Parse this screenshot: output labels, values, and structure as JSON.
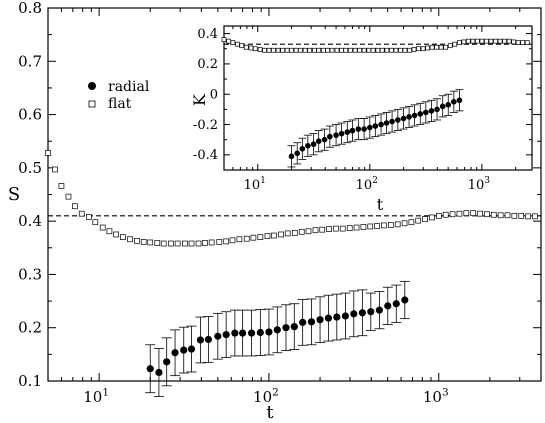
{
  "chart_data": [
    {
      "type": "scatter",
      "title": "",
      "xlabel": "t",
      "ylabel": "S",
      "xscale": "log",
      "xlim": [
        5,
        4000
      ],
      "ylim": [
        0.1,
        0.8
      ],
      "xticks": [
        {
          "v": 10,
          "e": "1"
        },
        {
          "v": 100,
          "e": "2"
        },
        {
          "v": 1000,
          "e": "3"
        }
      ],
      "xtick_base": "10",
      "yticks": [
        "0.1",
        "0.2",
        "0.3",
        "0.4",
        "0.5",
        "0.6",
        "0.7",
        "0.8"
      ],
      "ytick_values": [
        0.1,
        0.2,
        0.3,
        0.4,
        0.5,
        0.6,
        0.7,
        0.8
      ],
      "grid": false,
      "legend_position": "left, upper-middle",
      "reference_line": {
        "y": 0.41,
        "style": "dashed"
      },
      "series": [
        {
          "name": "radial",
          "marker": "filled-circle",
          "x": [
            20,
            22.5,
            25,
            28,
            31.5,
            35,
            39.5,
            44,
            50,
            56,
            63,
            70,
            79,
            89,
            100,
            112,
            126,
            141,
            158,
            178,
            200,
            224,
            251,
            282,
            316,
            355,
            398,
            447,
            501,
            562,
            631
          ],
          "y": [
            0.123,
            0.116,
            0.136,
            0.153,
            0.158,
            0.16,
            0.177,
            0.178,
            0.184,
            0.187,
            0.19,
            0.19,
            0.19,
            0.191,
            0.192,
            0.196,
            0.2,
            0.202,
            0.21,
            0.211,
            0.215,
            0.218,
            0.22,
            0.222,
            0.226,
            0.228,
            0.23,
            0.233,
            0.241,
            0.245,
            0.252
          ],
          "err": [
            0.045,
            0.045,
            0.045,
            0.043,
            0.043,
            0.043,
            0.043,
            0.043,
            0.043,
            0.043,
            0.043,
            0.043,
            0.043,
            0.043,
            0.043,
            0.043,
            0.043,
            0.043,
            0.043,
            0.043,
            0.043,
            0.043,
            0.043,
            0.043,
            0.043,
            0.043,
            0.035,
            0.035,
            0.035,
            0.035,
            0.035
          ]
        },
        {
          "name": "flat",
          "marker": "open-square",
          "x": [
            5.0,
            5.5,
            6.0,
            6.6,
            7.2,
            7.9,
            8.7,
            9.5,
            10.5,
            11.5,
            12.6,
            13.8,
            15.2,
            16.7,
            18.3,
            20,
            22,
            24,
            26.5,
            29,
            32,
            35,
            38.5,
            42,
            46,
            51,
            56,
            61,
            67,
            74,
            81,
            89,
            98,
            107,
            118,
            129,
            142,
            156,
            171,
            188,
            206,
            226,
            248,
            272,
            299,
            328,
            360,
            395,
            433,
            475,
            522,
            573,
            629,
            690,
            757,
            831,
            912,
            1001,
            1099,
            1206,
            1324,
            1453,
            1595,
            1750,
            1921,
            2108,
            2314,
            2540,
            2787,
            3059,
            3358,
            3685
          ],
          "y": [
            0.528,
            0.497,
            0.466,
            0.446,
            0.428,
            0.414,
            0.408,
            0.398,
            0.388,
            0.381,
            0.375,
            0.37,
            0.366,
            0.363,
            0.361,
            0.36,
            0.359,
            0.358,
            0.358,
            0.358,
            0.358,
            0.358,
            0.358,
            0.359,
            0.36,
            0.361,
            0.362,
            0.364,
            0.366,
            0.367,
            0.369,
            0.37,
            0.372,
            0.373,
            0.375,
            0.377,
            0.378,
            0.38,
            0.381,
            0.383,
            0.384,
            0.385,
            0.386,
            0.386,
            0.387,
            0.388,
            0.389,
            0.39,
            0.391,
            0.392,
            0.393,
            0.394,
            0.396,
            0.398,
            0.401,
            0.404,
            0.407,
            0.41,
            0.412,
            0.413,
            0.414,
            0.415,
            0.415,
            0.414,
            0.413,
            0.412,
            0.411,
            0.411,
            0.41,
            0.41,
            0.409,
            0.409
          ],
          "err": 0.004
        }
      ]
    },
    {
      "type": "scatter",
      "title": "",
      "xlabel": "t",
      "ylabel": "K",
      "xscale": "log",
      "xlim": [
        5,
        2800
      ],
      "ylim": [
        -0.5,
        0.45
      ],
      "xticks": [
        {
          "v": 10,
          "e": "1"
        },
        {
          "v": 100,
          "e": "2"
        },
        {
          "v": 1000,
          "e": "3"
        }
      ],
      "xtick_base": "10",
      "yticks": [
        "-0.4",
        "-0.2",
        "0",
        "0.2",
        "0.4"
      ],
      "ytick_values": [
        -0.4,
        -0.2,
        0,
        0.2,
        0.4
      ],
      "grid": false,
      "reference_line": {
        "y": 0.33,
        "style": "dashed"
      },
      "series": [
        {
          "name": "radial",
          "marker": "filled-circle",
          "x": [
            20,
            22.5,
            25,
            28,
            31.5,
            35,
            39.5,
            44,
            50,
            56,
            63,
            70,
            79,
            89,
            100,
            112,
            126,
            141,
            158,
            178,
            200,
            224,
            251,
            282,
            316,
            355,
            398,
            447,
            501,
            562,
            631
          ],
          "y": [
            -0.41,
            -0.39,
            -0.36,
            -0.34,
            -0.33,
            -0.31,
            -0.3,
            -0.28,
            -0.27,
            -0.26,
            -0.25,
            -0.24,
            -0.23,
            -0.23,
            -0.22,
            -0.21,
            -0.2,
            -0.19,
            -0.18,
            -0.17,
            -0.16,
            -0.15,
            -0.14,
            -0.13,
            -0.12,
            -0.11,
            -0.1,
            -0.08,
            -0.07,
            -0.05,
            -0.04
          ],
          "err": 0.07
        },
        {
          "name": "flat",
          "marker": "open-square",
          "x": [
            5.0,
            5.5,
            6.0,
            6.6,
            7.2,
            7.9,
            8.7,
            9.5,
            10.5,
            11.5,
            12.6,
            13.8,
            15.2,
            16.7,
            18.3,
            20,
            22,
            24,
            26.5,
            29,
            32,
            35,
            38.5,
            42,
            46,
            51,
            56,
            61,
            67,
            74,
            81,
            89,
            98,
            107,
            118,
            129,
            142,
            156,
            171,
            188,
            206,
            226,
            248,
            272,
            299,
            328,
            360,
            395,
            433,
            475,
            522,
            573,
            629,
            690,
            757,
            831,
            912,
            1001,
            1099,
            1206,
            1324,
            1453,
            1595,
            1750,
            1921,
            2108,
            2314,
            2540
          ],
          "y": [
            0.36,
            0.35,
            0.34,
            0.33,
            0.32,
            0.31,
            0.305,
            0.3,
            0.295,
            0.29,
            0.29,
            0.29,
            0.29,
            0.29,
            0.29,
            0.29,
            0.29,
            0.29,
            0.29,
            0.29,
            0.29,
            0.29,
            0.29,
            0.29,
            0.29,
            0.29,
            0.29,
            0.29,
            0.29,
            0.29,
            0.29,
            0.29,
            0.29,
            0.29,
            0.29,
            0.29,
            0.29,
            0.29,
            0.29,
            0.29,
            0.29,
            0.29,
            0.295,
            0.3,
            0.3,
            0.305,
            0.31,
            0.31,
            0.31,
            0.31,
            0.32,
            0.33,
            0.34,
            0.345,
            0.35,
            0.35,
            0.35,
            0.35,
            0.35,
            0.35,
            0.35,
            0.35,
            0.35,
            0.35,
            0.345,
            0.34,
            0.34,
            0.34
          ],
          "err": 0.012
        }
      ]
    }
  ]
}
